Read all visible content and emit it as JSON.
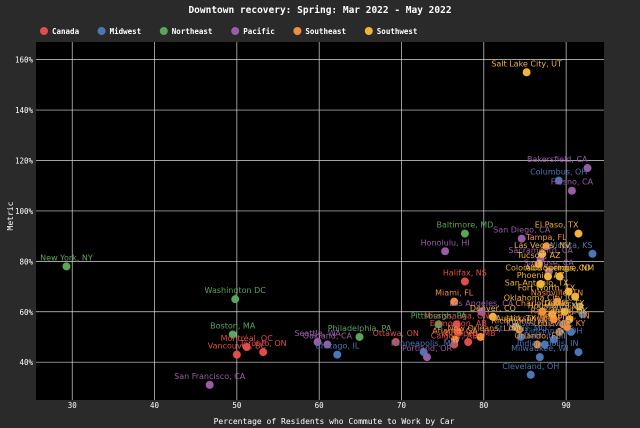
{
  "chart_data": {
    "type": "scatter",
    "title": "Downtown recovery: Spring: Mar 2022 - May 2022",
    "xlabel": "Percentage of Residents who Commute to Work by Car",
    "ylabel": "Metric",
    "xlim": [
      25.6,
      94.6
    ],
    "ylim": [
      25,
      167
    ],
    "xticks": [
      30,
      40,
      50,
      60,
      70,
      80,
      90
    ],
    "yticks": [
      40,
      60,
      80,
      100,
      120,
      140,
      160
    ],
    "ytick_suffix": "%",
    "grid": true,
    "legend_position": "top-left",
    "series": [
      {
        "name": "Canada",
        "color": "#e04d4b",
        "points": [
          {
            "label": "Halifax, NS",
            "x": 77.7,
            "y": 72
          },
          {
            "label": "Ottawa, ON",
            "x": 69.3,
            "y": 48
          },
          {
            "label": "Toronto, ON",
            "x": 53.2,
            "y": 44
          },
          {
            "label": "Montréal, QC",
            "x": 51.2,
            "y": 46
          },
          {
            "label": "Vancouver, BC",
            "x": 50.0,
            "y": 43
          },
          {
            "label": "Edmonton, AB",
            "x": 76.9,
            "y": 52
          },
          {
            "label": "Calgary, AB",
            "x": 76.4,
            "y": 47
          },
          {
            "label": "Winnipeg, MB",
            "x": 78.1,
            "y": 48
          },
          {
            "label": "Mississauga, ON",
            "x": 76.7,
            "y": 55
          }
        ]
      },
      {
        "name": "Midwest",
        "color": "#4a77b5",
        "points": [
          {
            "label": "Columbus, OH",
            "x": 89.1,
            "y": 112
          },
          {
            "label": "Wichita, KS",
            "x": 93.2,
            "y": 83
          },
          {
            "label": "Chicago, IL",
            "x": 62.2,
            "y": 43
          },
          {
            "label": "Minneapolis, MN",
            "x": 72.7,
            "y": 44
          },
          {
            "label": "Cleveland, OH",
            "x": 85.7,
            "y": 35
          },
          {
            "label": "Indianapolis, IN",
            "x": 91.5,
            "y": 44
          },
          {
            "label": "Kansas City, MO",
            "x": 90.6,
            "y": 52
          },
          {
            "label": "St. Louis, MO",
            "x": 84.5,
            "y": 50
          },
          {
            "label": "Detroit, MI",
            "x": 87.4,
            "y": 47
          },
          {
            "label": "Milwaukee, WI",
            "x": 86.8,
            "y": 42
          },
          {
            "label": "Cincinnati, OH",
            "x": 88.5,
            "y": 49
          },
          {
            "label": "Omaha, NE",
            "x": 92.0,
            "y": 59
          }
        ]
      },
      {
        "name": "Northeast",
        "color": "#5aa55c",
        "points": [
          {
            "label": "New York, NY",
            "x": 29.3,
            "y": 78
          },
          {
            "label": "Washington DC",
            "x": 49.8,
            "y": 65
          },
          {
            "label": "Boston, MA",
            "x": 49.5,
            "y": 51
          },
          {
            "label": "Philadelphia, PA",
            "x": 64.9,
            "y": 50
          },
          {
            "label": "Baltimore, MD",
            "x": 77.7,
            "y": 91
          },
          {
            "label": "Pittsburgh, PA",
            "x": 74.5,
            "y": 55
          }
        ]
      },
      {
        "name": "Pacific",
        "color": "#9a5ba8",
        "points": [
          {
            "label": "Bakersfield, CA",
            "x": 92.6,
            "y": 117
          },
          {
            "label": "Fresno, CA",
            "x": 90.7,
            "y": 108
          },
          {
            "label": "San Diego, CA",
            "x": 84.6,
            "y": 89
          },
          {
            "label": "Honolulu, HI",
            "x": 75.3,
            "y": 84
          },
          {
            "label": "Sacramento, CA",
            "x": 86.9,
            "y": 81
          },
          {
            "label": "Los Angeles, CA",
            "x": 79.7,
            "y": 60
          },
          {
            "label": "Seattle, WA",
            "x": 59.8,
            "y": 48
          },
          {
            "label": "Oakland, CA",
            "x": 61.0,
            "y": 47
          },
          {
            "label": "Portland, OR",
            "x": 73.1,
            "y": 42
          },
          {
            "label": "San Francisco, CA",
            "x": 46.7,
            "y": 31
          },
          {
            "label": "San Jose, CA",
            "x": 87.9,
            "y": 76
          }
        ]
      },
      {
        "name": "Southeast",
        "color": "#f28e3b",
        "points": [
          {
            "label": "Miami, FL",
            "x": 76.4,
            "y": 64
          },
          {
            "label": "Tampa, FL",
            "x": 87.6,
            "y": 86
          },
          {
            "label": "Nashville, TN",
            "x": 88.9,
            "y": 64
          },
          {
            "label": "Charlotte, NC",
            "x": 87.1,
            "y": 60
          },
          {
            "label": "Atlanta, GA",
            "x": 76.5,
            "y": 49
          },
          {
            "label": "New Orleans, LA",
            "x": 79.6,
            "y": 50
          },
          {
            "label": "Louisville, KY",
            "x": 89.2,
            "y": 52
          },
          {
            "label": "Raleigh, NC",
            "x": 88.5,
            "y": 57
          },
          {
            "label": "Richmond, VA",
            "x": 84.3,
            "y": 53
          },
          {
            "label": "Jacksonville, FL",
            "x": 90.1,
            "y": 54
          },
          {
            "label": "Memphis, TN",
            "x": 89.7,
            "y": 55
          },
          {
            "label": "Orlando, FL",
            "x": 86.5,
            "y": 47
          }
        ]
      },
      {
        "name": "Southwest",
        "color": "#f0b43c",
        "points": [
          {
            "label": "Salt Lake City, UT",
            "x": 85.2,
            "y": 155
          },
          {
            "label": "El Paso, TX",
            "x": 91.5,
            "y": 91
          },
          {
            "label": "Las Vegas, NV",
            "x": 87.1,
            "y": 83
          },
          {
            "label": "Tucson, AZ",
            "x": 86.7,
            "y": 79
          },
          {
            "label": "Colorado Springs, CO",
            "x": 87.8,
            "y": 74
          },
          {
            "label": "Albuquerque, NM",
            "x": 89.2,
            "y": 74
          },
          {
            "label": "Phoenix, AZ",
            "x": 86.9,
            "y": 71
          },
          {
            "label": "San Antonio, TX",
            "x": 90.3,
            "y": 68
          },
          {
            "label": "Fort Worth, TX",
            "x": 91.1,
            "y": 66
          },
          {
            "label": "Dallas, TX",
            "x": 89.8,
            "y": 60
          },
          {
            "label": "Houston, TX",
            "x": 88.3,
            "y": 59
          },
          {
            "label": "Austin, TX",
            "x": 83.9,
            "y": 54
          },
          {
            "label": "Denver, CO",
            "x": 81.1,
            "y": 58
          },
          {
            "label": "Oklahoma City, OK",
            "x": 91.6,
            "y": 62
          },
          {
            "label": "Tulsa, OK",
            "x": 90.4,
            "y": 57
          }
        ]
      }
    ]
  }
}
